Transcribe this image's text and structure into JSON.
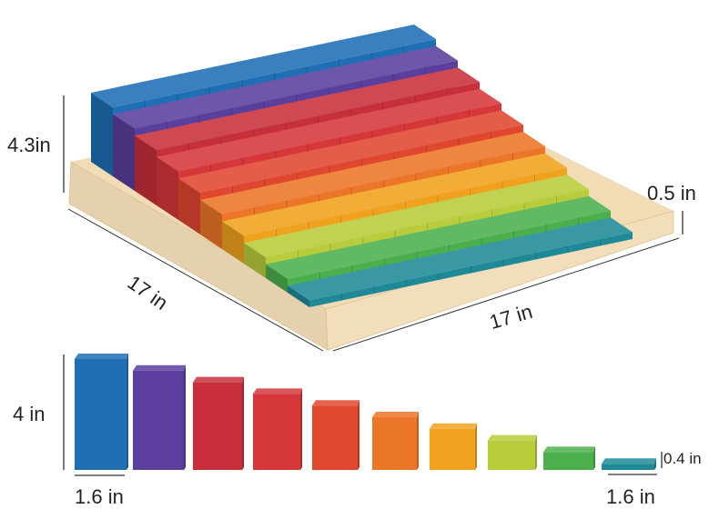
{
  "labels": {
    "tray_height": "4.3in",
    "rim_height": "0.5 in",
    "side_left": "17 in",
    "side_right": "17 in",
    "block_max_height": "4 in",
    "block_width_left": "1.6 in",
    "block_width_right": "1.6 in",
    "block_min_height": "0.4 in"
  },
  "colors": {
    "blocks": [
      "#1f6fb5",
      "#5a3f9c",
      "#c7303a",
      "#d5373a",
      "#e0472f",
      "#ec7628",
      "#f0a21e",
      "#b9cc3c",
      "#4caf4e",
      "#1e8a98"
    ],
    "wood": "#f1dcb6",
    "wood_edge": "#dcc08e"
  },
  "block_heights_in": [
    4.0,
    3.6,
    3.2,
    2.8,
    2.4,
    2.0,
    1.6,
    1.2,
    0.8,
    0.4
  ]
}
